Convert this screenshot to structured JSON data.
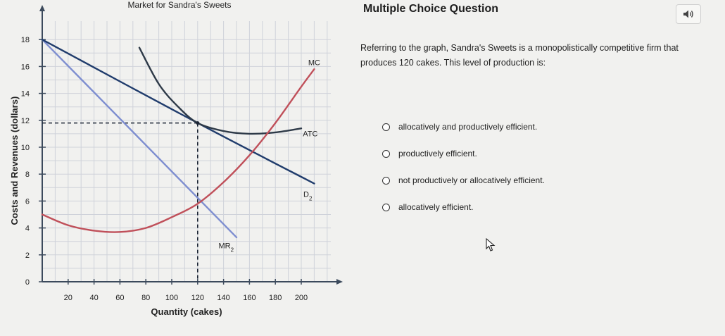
{
  "chart_data": {
    "type": "line",
    "title": "Market for Sandra's Sweets",
    "xlabel": "Quantity (cakes)",
    "ylabel": "Costs and Revenues (dollars)",
    "xlim": [
      0,
      220
    ],
    "ylim": [
      0,
      18
    ],
    "xticks": [
      20,
      40,
      60,
      80,
      100,
      120,
      140,
      160,
      180,
      200
    ],
    "yticks": [
      0,
      2,
      4,
      6,
      8,
      10,
      12,
      14,
      16,
      18
    ],
    "grid": true,
    "series": [
      {
        "name": "MC",
        "color": "#c0505a",
        "points": [
          [
            0,
            5.0
          ],
          [
            20,
            4.2
          ],
          [
            40,
            3.8
          ],
          [
            60,
            3.7
          ],
          [
            80,
            4.0
          ],
          [
            100,
            4.8
          ],
          [
            120,
            5.8
          ],
          [
            140,
            7.4
          ],
          [
            160,
            9.4
          ],
          [
            180,
            11.8
          ],
          [
            200,
            14.5
          ],
          [
            210,
            15.8
          ]
        ]
      },
      {
        "name": "ATC",
        "color": "#2e3a48",
        "points": [
          [
            75,
            17.4
          ],
          [
            90,
            14.7
          ],
          [
            105,
            13.0
          ],
          [
            120,
            11.8
          ],
          [
            140,
            11.2
          ],
          [
            160,
            11.0
          ],
          [
            180,
            11.1
          ],
          [
            200,
            11.4
          ]
        ]
      },
      {
        "name": "D2",
        "color": "#203c6c",
        "points": [
          [
            0,
            18.0
          ],
          [
            120,
            11.8
          ],
          [
            210,
            7.3
          ]
        ]
      },
      {
        "name": "MR2",
        "color": "#7e8ed0",
        "points": [
          [
            0,
            18.0
          ],
          [
            150,
            3.3
          ]
        ]
      }
    ],
    "annotations": [
      {
        "text": "MC",
        "x": 210,
        "y": 16.1
      },
      {
        "text": "ATC",
        "x": 207,
        "y": 10.8
      },
      {
        "text": "D2",
        "x": 205,
        "y": 6.3
      },
      {
        "text": "MR2",
        "x": 142,
        "y": 2.5
      }
    ],
    "guides": {
      "q": 120,
      "price": 11.8,
      "mc_at_q": 5.8
    }
  },
  "question": {
    "header": "Multiple Choice Question",
    "text": "Referring to the graph, Sandra's Sweets is a monopolistically competitive firm that produces 120 cakes. This level of production is:",
    "options": [
      "allocatively and productively efficient.",
      "productively efficient.",
      "not productively or allocatively efficient.",
      "allocatively efficient."
    ]
  }
}
